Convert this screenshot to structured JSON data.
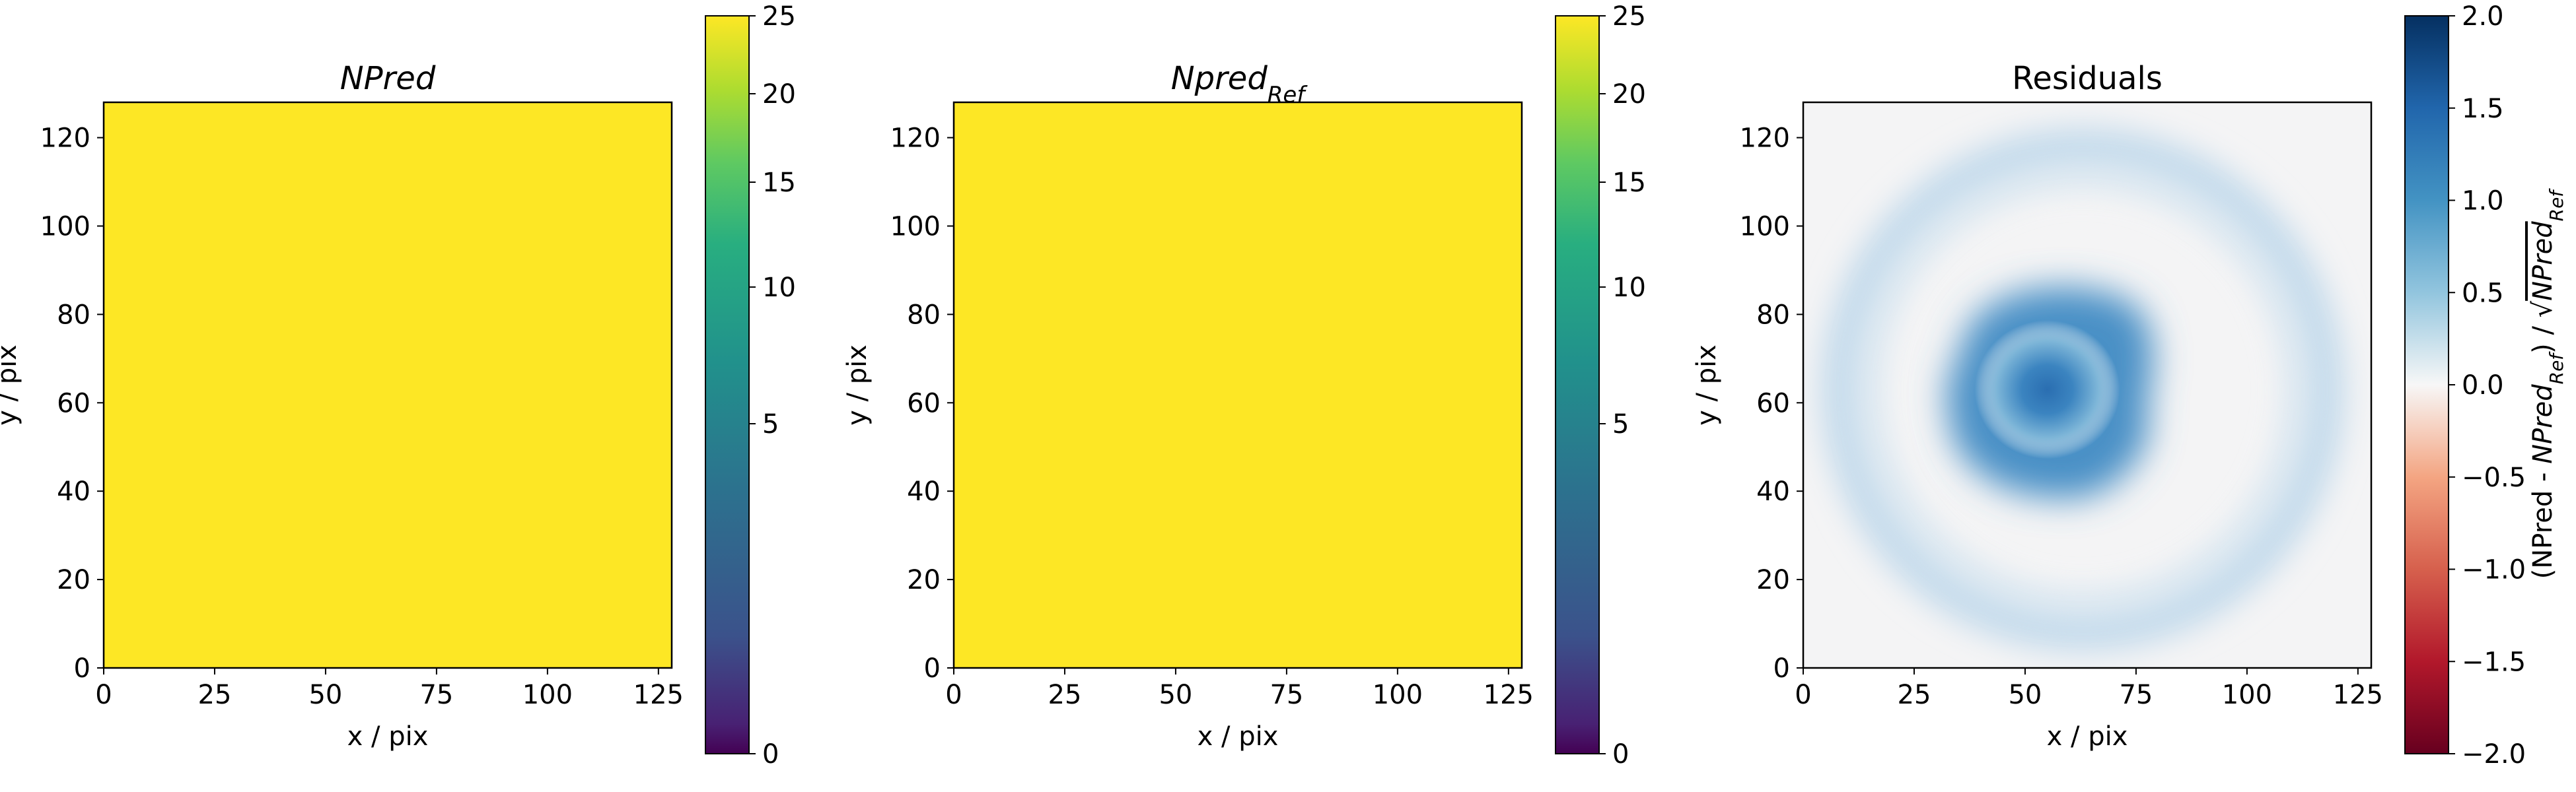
{
  "chart_data": [
    {
      "type": "heatmap",
      "title": "NPred",
      "xlabel": "x / pix",
      "ylabel": "y / pix",
      "xlim": [
        0,
        128
      ],
      "ylim": [
        0,
        128
      ],
      "xticks": [
        "0",
        "25",
        "50",
        "75",
        "100",
        "125"
      ],
      "yticks": [
        "0",
        "20",
        "40",
        "60",
        "80",
        "100",
        "120"
      ],
      "value": 25,
      "colormap": "viridis",
      "colorbar": {
        "scale": "sqrt",
        "range": [
          0,
          25
        ],
        "ticks": [
          "0",
          "5",
          "10",
          "15",
          "20",
          "25"
        ]
      }
    },
    {
      "type": "heatmap",
      "title": "Npred",
      "title_sub": "Ref",
      "xlabel": "x / pix",
      "ylabel": "y / pix",
      "xlim": [
        0,
        128
      ],
      "ylim": [
        0,
        128
      ],
      "xticks": [
        "0",
        "25",
        "50",
        "75",
        "100",
        "125"
      ],
      "yticks": [
        "0",
        "20",
        "40",
        "60",
        "80",
        "100",
        "120"
      ],
      "value": 25,
      "colormap": "viridis",
      "colorbar": {
        "scale": "sqrt",
        "range": [
          0,
          25
        ],
        "ticks": [
          "0",
          "5",
          "10",
          "15",
          "20",
          "25"
        ]
      }
    },
    {
      "type": "heatmap",
      "title": "Residuals",
      "xlabel": "x / pix",
      "ylabel": "y / pix",
      "xlim": [
        0,
        128
      ],
      "ylim": [
        0,
        128
      ],
      "xticks": [
        "0",
        "25",
        "50",
        "75",
        "100",
        "125"
      ],
      "yticks": [
        "0",
        "20",
        "40",
        "60",
        "80",
        "100",
        "120"
      ],
      "colormap": "RdBu",
      "features": {
        "core": {
          "center_x": 55,
          "center_y": 63,
          "peak": 1.45
        },
        "ring": {
          "center_x": 63,
          "center_y": 63,
          "radius": 54,
          "peak": 0.35
        }
      },
      "colorbar": {
        "scale": "linear",
        "range": [
          -2.0,
          2.0
        ],
        "ticks": [
          "2.0",
          "1.5",
          "1.0",
          "0.5",
          "0.0",
          "−0.5",
          "−1.0",
          "−1.5",
          "−2.0"
        ],
        "label_prefix": "(NPred - ",
        "label_npred": "NPred",
        "label_ref": "Ref",
        "label_mid": ") / ",
        "label_sqrt": "√"
      }
    }
  ]
}
